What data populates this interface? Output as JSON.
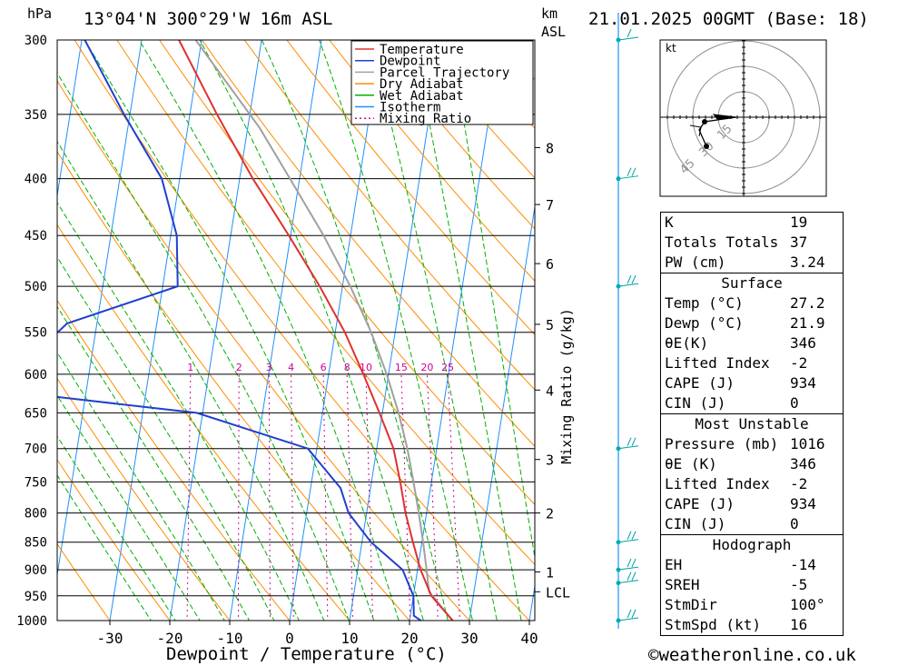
{
  "header": {
    "hpa": "hPa",
    "location": "13°04'N  300°29'W  16m  ASL",
    "km": "km",
    "asl": "ASL",
    "datetime": "21.01.2025 00GMT (Base: 18)"
  },
  "footer": {
    "credit": "©weatheronline.co.uk"
  },
  "chart_data": {
    "type": "skew-t",
    "xlabel": "Dewpoint / Temperature (°C)",
    "ylabel_left": "hPa",
    "mixing_ratio_label": "Mixing Ratio (g/kg)",
    "pressure_levels": [
      300,
      350,
      400,
      450,
      500,
      550,
      600,
      650,
      700,
      750,
      800,
      850,
      900,
      950,
      1000
    ],
    "temp_ticks": [
      -30,
      -20,
      -10,
      0,
      10,
      20,
      30,
      40
    ],
    "km_ticks": [
      {
        "label": "8",
        "p": 375
      },
      {
        "label": "7",
        "p": 422
      },
      {
        "label": "6",
        "p": 477
      },
      {
        "label": "5",
        "p": 541
      },
      {
        "label": "4",
        "p": 620
      },
      {
        "label": "3",
        "p": 716
      },
      {
        "label": "2",
        "p": 800
      },
      {
        "label": "1",
        "p": 904
      },
      {
        "label": "LCL",
        "p": 942
      }
    ],
    "mixing_ratio_values": [
      "1",
      "2",
      "3",
      "4",
      "6",
      "8",
      "10",
      "15",
      "20",
      "25"
    ],
    "legend": [
      "Temperature",
      "Dewpoint",
      "Parcel Trajectory",
      "Dry Adiabat",
      "Wet Adiabat",
      "Isotherm",
      "Mixing Ratio"
    ],
    "colors": {
      "temperature": "#e03030",
      "dewpoint": "#2040d0",
      "parcel": "#a0a0a0",
      "dry": "#ff8c00",
      "wet": "#00b000",
      "isotherm": "#1e90ff",
      "mixing": "#cc0099"
    },
    "temperature": [
      {
        "p": 1000,
        "t": 27.2
      },
      {
        "p": 950,
        "t": 23.0
      },
      {
        "p": 900,
        "t": 20.5
      },
      {
        "p": 850,
        "t": 18.5
      },
      {
        "p": 800,
        "t": 16.5
      },
      {
        "p": 750,
        "t": 14.8
      },
      {
        "p": 700,
        "t": 12.8
      },
      {
        "p": 650,
        "t": 9.5
      },
      {
        "p": 600,
        "t": 5.8
      },
      {
        "p": 550,
        "t": 1.6
      },
      {
        "p": 500,
        "t": -3.8
      },
      {
        "p": 450,
        "t": -10.3
      },
      {
        "p": 400,
        "t": -17.8
      },
      {
        "p": 350,
        "t": -25.5
      },
      {
        "p": 300,
        "t": -33.8
      }
    ],
    "dewpoint": [
      {
        "p": 1000,
        "t": 21.9
      },
      {
        "p": 990,
        "t": 20.6
      },
      {
        "p": 950,
        "t": 20.0
      },
      {
        "p": 900,
        "t": 17.5
      },
      {
        "p": 850,
        "t": 11.5
      },
      {
        "p": 800,
        "t": 7.0
      },
      {
        "p": 760,
        "t": 5.0
      },
      {
        "p": 700,
        "t": -1.5
      },
      {
        "p": 650,
        "t": -21.0
      },
      {
        "p": 620,
        "t": -55.0
      },
      {
        "p": 540,
        "t": -45.0
      },
      {
        "p": 500,
        "t": -27.5
      },
      {
        "p": 450,
        "t": -29.0
      },
      {
        "p": 400,
        "t": -33.0
      },
      {
        "p": 350,
        "t": -41.0
      },
      {
        "p": 300,
        "t": -49.5
      }
    ],
    "parcel": [
      {
        "p": 1000,
        "t": 27.2
      },
      {
        "p": 942,
        "t": 22.5
      },
      {
        "p": 900,
        "t": 21.5
      },
      {
        "p": 850,
        "t": 20.2
      },
      {
        "p": 800,
        "t": 18.7
      },
      {
        "p": 750,
        "t": 17.0
      },
      {
        "p": 700,
        "t": 15.1
      },
      {
        "p": 650,
        "t": 12.7
      },
      {
        "p": 600,
        "t": 9.7
      },
      {
        "p": 550,
        "t": 6.0
      },
      {
        "p": 500,
        "t": 1.3
      },
      {
        "p": 450,
        "t": -4.5
      },
      {
        "p": 400,
        "t": -11.6
      },
      {
        "p": 360,
        "t": -18.0
      },
      {
        "p": 300,
        "t": -31.0
      }
    ],
    "wind_barbs": [
      {
        "p": 300,
        "speed_kt": 10
      },
      {
        "p": 400,
        "speed_kt": 20
      },
      {
        "p": 500,
        "speed_kt": 20
      },
      {
        "p": 700,
        "speed_kt": 20
      },
      {
        "p": 850,
        "speed_kt": 20
      },
      {
        "p": 900,
        "speed_kt": 20
      },
      {
        "p": 925,
        "speed_kt": 20
      },
      {
        "p": 1000,
        "speed_kt": 20
      }
    ],
    "hodograph": {
      "unit": "kt",
      "rings": [
        "15",
        "30",
        "45"
      ]
    }
  },
  "indices": {
    "K": {
      "label": "K",
      "value": "19"
    },
    "totals": {
      "label": "Totals Totals",
      "value": "37"
    },
    "pw": {
      "label": "PW (cm)",
      "value": "3.24"
    },
    "surface": {
      "title": "Surface",
      "rows": [
        {
          "label": "Temp (°C)",
          "value": "27.2"
        },
        {
          "label": "Dewp (°C)",
          "value": "21.9"
        },
        {
          "label": "θE(K)",
          "value": "346"
        },
        {
          "label": "Lifted Index",
          "value": "-2"
        },
        {
          "label": "CAPE (J)",
          "value": "934"
        },
        {
          "label": "CIN (J)",
          "value": "0"
        }
      ]
    },
    "unstable": {
      "title": "Most Unstable",
      "rows": [
        {
          "label": "Pressure (mb)",
          "value": "1016"
        },
        {
          "label": "θE (K)",
          "value": "346"
        },
        {
          "label": "Lifted Index",
          "value": "-2"
        },
        {
          "label": "CAPE (J)",
          "value": "934"
        },
        {
          "label": "CIN (J)",
          "value": "0"
        }
      ]
    },
    "hodo": {
      "title": "Hodograph",
      "rows": [
        {
          "label": "EH",
          "value": "-14"
        },
        {
          "label": "SREH",
          "value": "-5"
        },
        {
          "label": "StmDir",
          "value": "100°"
        },
        {
          "label": "StmSpd (kt)",
          "value": "16"
        }
      ]
    }
  }
}
